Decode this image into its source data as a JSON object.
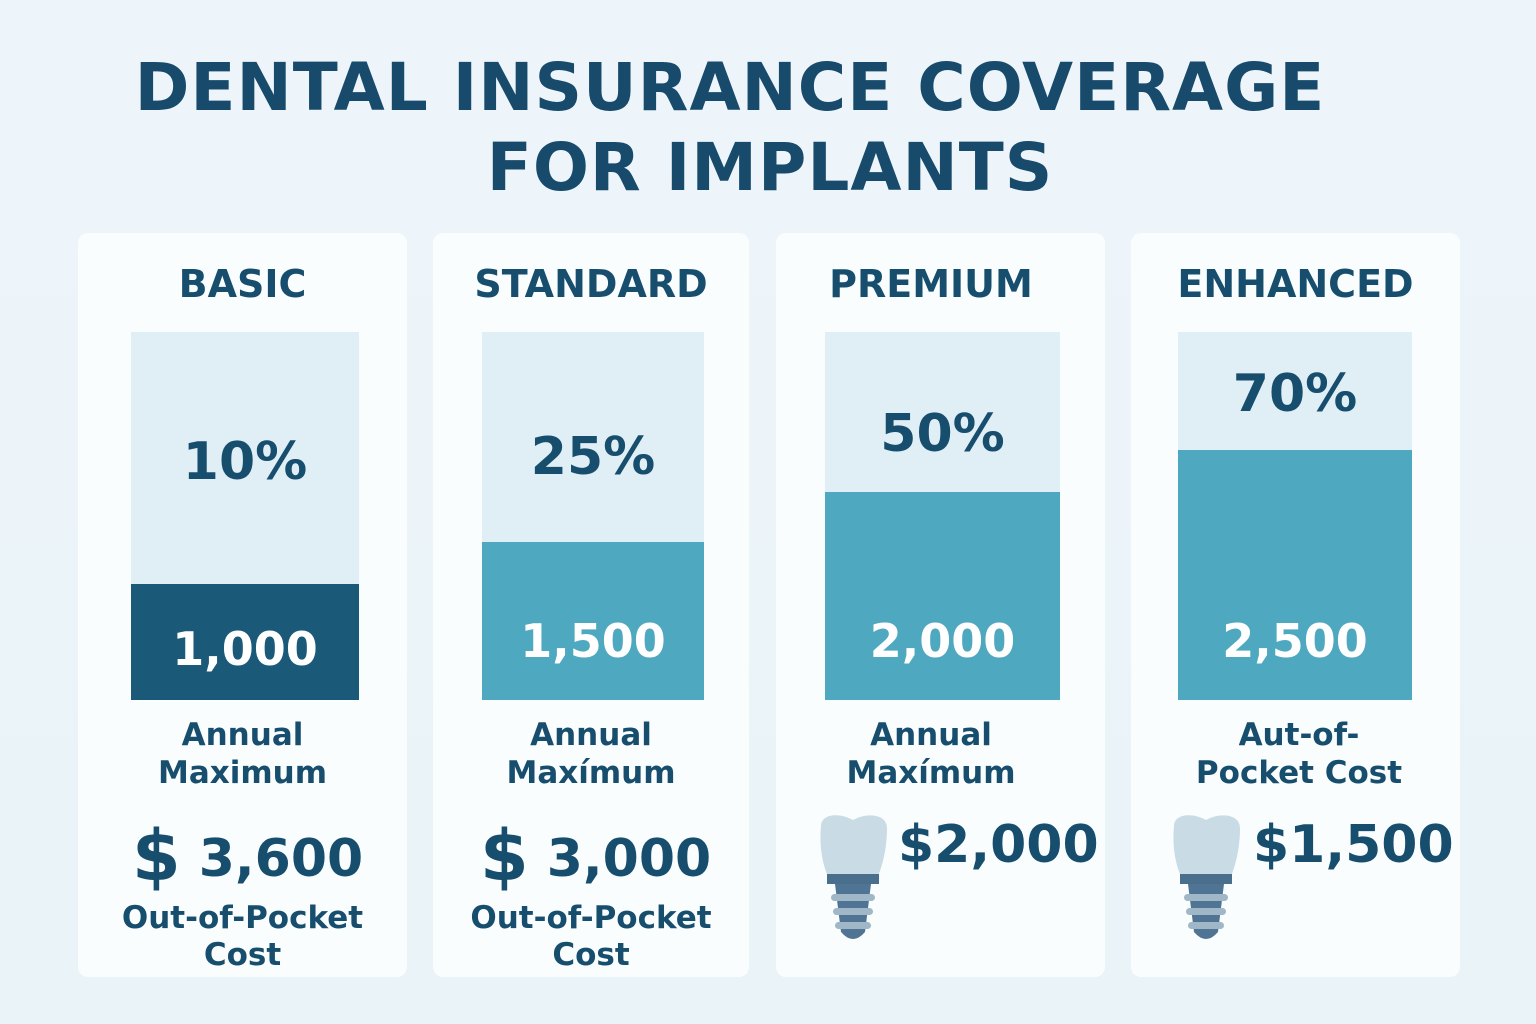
{
  "title_line1": "DENTAL INSURANCE COVERAGE",
  "title_line2": "FOR IMPLANTS",
  "colors": {
    "title": "#174a6b",
    "basic_fill": "#1a5a78",
    "teal_fill": "#4ea8bf",
    "bar_bg": "#e0eef6"
  },
  "chart_data": {
    "type": "bar",
    "title": "DENTAL INSURANCE COVERAGE FOR IMPLANTS",
    "categories": [
      "BASIC",
      "STANDARD",
      "PREMIUM",
      "ENHANCED"
    ],
    "coverage_percent_labels": [
      "10%",
      "25%",
      "50%",
      "70%"
    ],
    "coverage_percent": [
      10,
      25,
      50,
      70
    ],
    "annual_maximum_labels": [
      "1,000",
      "1,500",
      "2,000",
      "2,500"
    ],
    "annual_maximum": [
      1000,
      1500,
      2000,
      2500
    ],
    "fill_fraction": [
      0.315,
      0.43,
      0.565,
      0.68
    ]
  },
  "cards": [
    {
      "plan": "BASIC",
      "label1": "Annual",
      "label2": "Maximum",
      "currency": "$",
      "cost": "3,600",
      "oop1": "Out-of-Pocket",
      "oop2": "Cost",
      "icon": "dollar-sign"
    },
    {
      "plan": "STANDARD",
      "label1": "Annual",
      "label2": "Maxímum",
      "currency": "$",
      "cost": "3,000",
      "oop1": "Out-of-Pocket",
      "oop2": "Cost",
      "icon": "dollar-sign"
    },
    {
      "plan": "PREMIUM",
      "label1": "Annual",
      "label2": "Maxímum",
      "cost": "$2,000",
      "icon": "dental-implant"
    },
    {
      "plan": "ENHANCED",
      "label1": "Aut-of-",
      "label2": "Pocket Cost",
      "cost": "$1,500",
      "icon": "dental-implant"
    }
  ]
}
